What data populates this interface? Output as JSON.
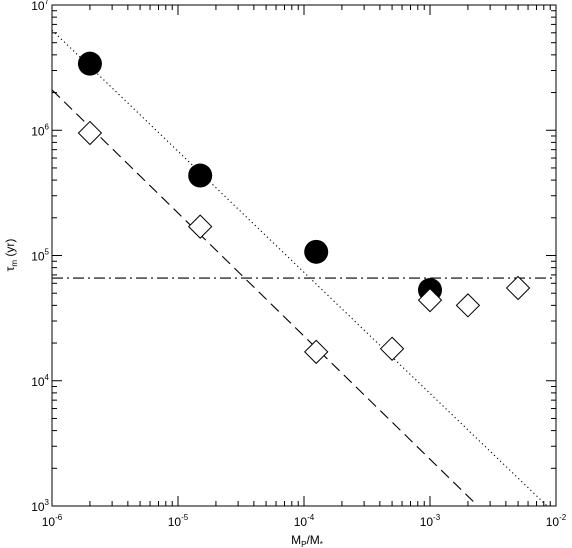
{
  "chart_data": {
    "type": "scatter",
    "title": "",
    "xlabel": {
      "main": "M",
      "sub": "P",
      "rest": "/M",
      "sub2": "*"
    },
    "ylabel": {
      "main": "τ",
      "sub": "m",
      "rest": " (yr)"
    },
    "xscale": "log",
    "yscale": "log",
    "xlim": [
      1e-06,
      0.01
    ],
    "ylim": [
      1000,
      10000000
    ],
    "grid": false,
    "legend": "none",
    "x_tick_exponents": [
      "-6",
      "-5",
      "-4",
      "-3",
      "-2"
    ],
    "y_tick_exponents": [
      "3",
      "4",
      "5",
      "6",
      "7"
    ],
    "tick_base": "10",
    "series": [
      {
        "marker": "filled-circle",
        "color": "#000000",
        "points": [
          {
            "x": 2e-06,
            "y": 3400000
          },
          {
            "x": 1.5e-05,
            "y": 435000
          },
          {
            "x": 0.000125,
            "y": 107000
          },
          {
            "x": 0.001,
            "y": 53000
          }
        ]
      },
      {
        "marker": "open-diamond",
        "color": "#000000",
        "points": [
          {
            "x": 2e-06,
            "y": 950000
          },
          {
            "x": 1.5e-05,
            "y": 170000
          },
          {
            "x": 0.000125,
            "y": 17000
          },
          {
            "x": 0.0005,
            "y": 18000
          },
          {
            "x": 0.001,
            "y": 44000
          },
          {
            "x": 0.002,
            "y": 40000
          },
          {
            "x": 0.005,
            "y": 55000
          }
        ]
      }
    ],
    "lines": [
      {
        "style": "dotted",
        "points": [
          {
            "x": 1e-06,
            "y": 6300000
          },
          {
            "x": 0.0085,
            "y": 1000
          }
        ]
      },
      {
        "style": "dashed",
        "points": [
          {
            "x": 1e-06,
            "y": 2100000
          },
          {
            "x": 0.0024,
            "y": 1000
          }
        ]
      },
      {
        "style": "dash-dot",
        "points": [
          {
            "x": 1e-06,
            "y": 66000
          },
          {
            "x": 0.01,
            "y": 66000
          }
        ]
      }
    ]
  }
}
